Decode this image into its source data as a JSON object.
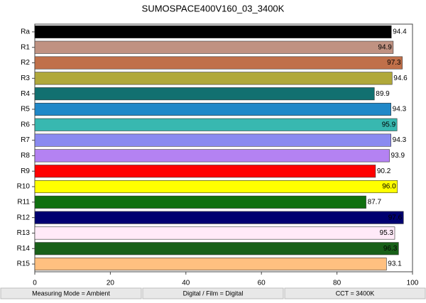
{
  "chart_data": {
    "type": "bar",
    "orientation": "horizontal",
    "title": "SUMOSPACE400V160_03_3400K",
    "categories": [
      "Ra",
      "R1",
      "R2",
      "R3",
      "R4",
      "R5",
      "R6",
      "R7",
      "R8",
      "R9",
      "R10",
      "R11",
      "R12",
      "R13",
      "R14",
      "R15"
    ],
    "values": [
      94.4,
      94.9,
      97.3,
      94.6,
      89.9,
      94.3,
      95.9,
      94.3,
      93.9,
      90.2,
      96.0,
      87.7,
      97.6,
      95.3,
      96.3,
      93.1
    ],
    "value_labels": [
      "94.4",
      "94.9",
      "97.3",
      "94.6",
      "89.9",
      "94.3",
      "95.9",
      "94.3",
      "93.9",
      "90.2",
      "96.0",
      "87.7",
      "97.6",
      "95.3",
      "96.3",
      "93.1"
    ],
    "colors": [
      "#000000",
      "#c09282",
      "#c0704a",
      "#b0a83a",
      "#127070",
      "#2088c8",
      "#38b8b0",
      "#8a8af0",
      "#b482f2",
      "#ff0000",
      "#ffff00",
      "#107010",
      "#000070",
      "#ffeaf8",
      "#186018",
      "#ffc080"
    ],
    "xlim": [
      0,
      100
    ],
    "xticks": [
      0,
      20,
      40,
      60,
      80,
      100
    ],
    "grid": false
  },
  "footer": [
    "Measuring Mode = Ambient",
    "Digital / Film = Digital",
    "CCT = 3400K"
  ]
}
